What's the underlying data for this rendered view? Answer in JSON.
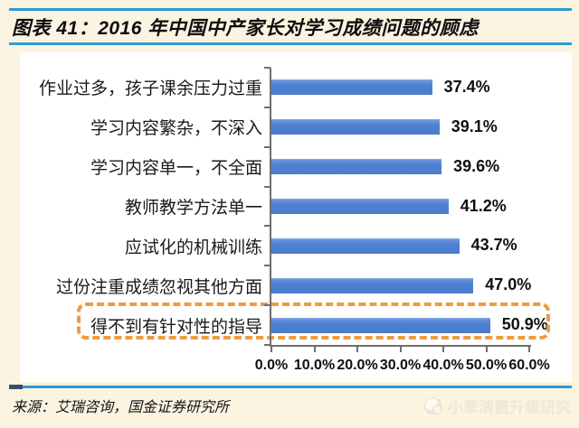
{
  "header": {
    "title": "图表 41：2016 年中国中产家长对学习成绩问题的顾虑"
  },
  "chart_data": {
    "type": "bar",
    "orientation": "horizontal",
    "title": "2016 年中国中产家长对学习成绩问题的顾虑",
    "categories": [
      "作业过多，孩子课余压力过重",
      "学习内容繁杂，不深入",
      "学习内容单一，不全面",
      "教师教学方法单一",
      "应试化的机械训练",
      "过份注重成绩忽视其他方面",
      "得不到有针对性的指导"
    ],
    "values": [
      37.4,
      39.1,
      39.6,
      41.2,
      43.7,
      47.0,
      50.9
    ],
    "value_labels": [
      "37.4%",
      "39.1%",
      "39.6%",
      "41.2%",
      "43.7%",
      "47.0%",
      "50.9%"
    ],
    "x_tick_labels": [
      "0.0%",
      "10.0%",
      "20.0%",
      "30.0%",
      "40.0%",
      "50.0%",
      "60.0%"
    ],
    "xlim": [
      0,
      60
    ],
    "grid": false,
    "legend": null,
    "highlighted_index": 6,
    "highlight_style": "dashed-orange-rounded-box"
  },
  "footer": {
    "source": "来源：艾瑞咨询，国金证券研究所",
    "watermark": "小草消费升级研究"
  },
  "colors": {
    "bg": "#FBF4E1",
    "rule-blue": "#2E9BD6",
    "rule-cap": "#3D4C66",
    "bar-blue": "#4E81D2",
    "orange": "#ED9C40",
    "axis-gray": "#6F6F6F",
    "watermark": "#EFEAD9"
  }
}
